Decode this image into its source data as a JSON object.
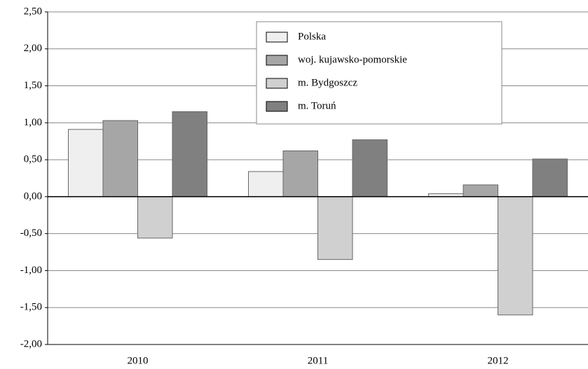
{
  "chart_data": {
    "type": "bar",
    "categories": [
      "2010",
      "2011",
      "2012"
    ],
    "series": [
      {
        "name": "Polska",
        "color": "#efefef",
        "values": [
          0.91,
          0.34,
          0.04
        ]
      },
      {
        "name": "woj. kujawsko-pomorskie",
        "color": "#a6a6a6",
        "values": [
          1.03,
          0.62,
          0.16
        ]
      },
      {
        "name": "m. Bydgoszcz",
        "color": "#d0d0d0",
        "values": [
          -0.56,
          -0.85,
          -1.6
        ]
      },
      {
        "name": "m. Toruń",
        "color": "#808080",
        "values": [
          1.15,
          0.77,
          0.51
        ]
      }
    ],
    "ylim": [
      -2,
      2.5
    ],
    "yticks": [
      {
        "value": -2,
        "label": "-2,00"
      },
      {
        "value": -1.5,
        "label": "-1,50"
      },
      {
        "value": -1,
        "label": "-1,00"
      },
      {
        "value": -0.5,
        "label": "-0,50"
      },
      {
        "value": 0,
        "label": "0,00"
      },
      {
        "value": 0.5,
        "label": "0,50"
      },
      {
        "value": 1,
        "label": "1,00"
      },
      {
        "value": 1.5,
        "label": "1,50"
      },
      {
        "value": 2,
        "label": "2,00"
      },
      {
        "value": 2.5,
        "label": "2,50"
      }
    ],
    "grid": true,
    "legend": "top"
  }
}
